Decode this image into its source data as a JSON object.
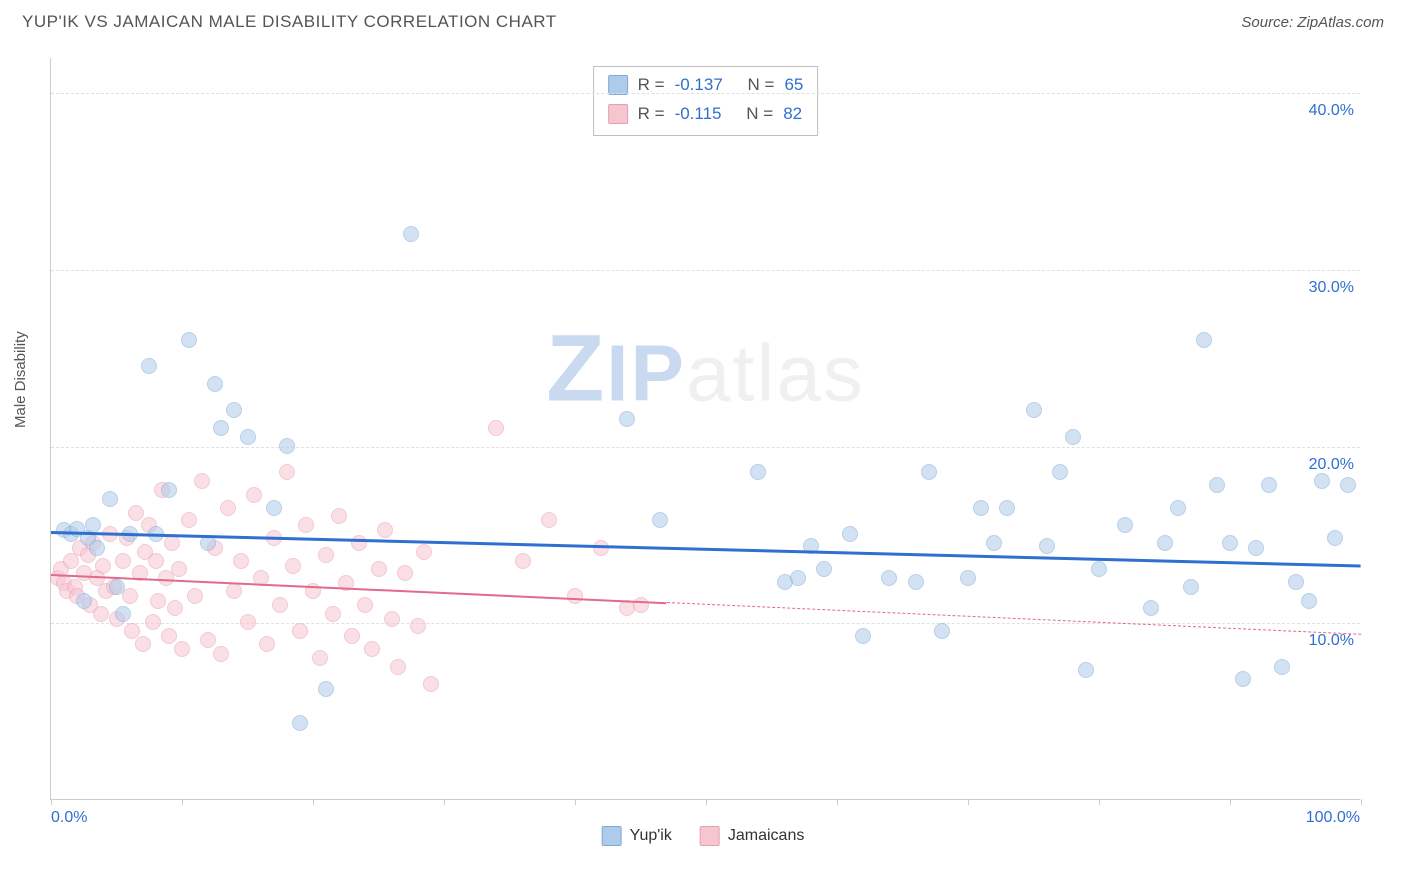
{
  "header": {
    "title": "YUP'IK VS JAMAICAN MALE DISABILITY CORRELATION CHART",
    "source_prefix": "Source: ",
    "source_name": "ZipAtlas.com"
  },
  "chart": {
    "type": "scatter",
    "y_axis_title": "Male Disability",
    "background_color": "#ffffff",
    "grid_color": "#e0e0e0",
    "axis_color": "#cccccc",
    "xlim": [
      0,
      100
    ],
    "ylim": [
      0,
      42
    ],
    "y_ticks": [
      10,
      20,
      30,
      40
    ],
    "y_tick_labels": [
      "10.0%",
      "20.0%",
      "30.0%",
      "40.0%"
    ],
    "x_ticks": [
      0,
      10,
      20,
      30,
      40,
      50,
      60,
      70,
      80,
      90,
      100
    ],
    "x_tick_labels": {
      "0": "0.0%",
      "100": "100.0%"
    },
    "x_tick_label_color": "#2f6fd0",
    "y_tick_label_color": "#2f6fd0",
    "label_fontsize": 16,
    "marker_size": 16,
    "marker_opacity": 0.55,
    "watermark": "ZIPatlas",
    "series": {
      "yupik": {
        "label": "Yup'ik",
        "fill_color": "#aecbeb",
        "stroke_color": "#7fa9d8",
        "trend_color": "#2f6fd0",
        "trend_width": 2.5,
        "trend": {
          "x1": 0,
          "y1": 15.2,
          "x2": 100,
          "y2": 13.3
        },
        "R": "-0.137",
        "N": "65",
        "points": [
          [
            1,
            15.2
          ],
          [
            1.5,
            15
          ],
          [
            2,
            15.3
          ],
          [
            2.5,
            11.2
          ],
          [
            2.8,
            14.8
          ],
          [
            3.2,
            15.5
          ],
          [
            3.5,
            14.2
          ],
          [
            4.5,
            17
          ],
          [
            5,
            12
          ],
          [
            5.5,
            10.5
          ],
          [
            6,
            15
          ],
          [
            7.5,
            24.5
          ],
          [
            8,
            15
          ],
          [
            9,
            17.5
          ],
          [
            10.5,
            26
          ],
          [
            12,
            14.5
          ],
          [
            12.5,
            23.5
          ],
          [
            13,
            21
          ],
          [
            14,
            22
          ],
          [
            15,
            20.5
          ],
          [
            17,
            16.5
          ],
          [
            18,
            20
          ],
          [
            19,
            4.3
          ],
          [
            21,
            6.2
          ],
          [
            27.5,
            32
          ],
          [
            44,
            21.5
          ],
          [
            46.5,
            15.8
          ],
          [
            54,
            18.5
          ],
          [
            56,
            12.3
          ],
          [
            57,
            12.5
          ],
          [
            58,
            14.3
          ],
          [
            59,
            13
          ],
          [
            61,
            15
          ],
          [
            62,
            9.2
          ],
          [
            64,
            12.5
          ],
          [
            66,
            12.3
          ],
          [
            67,
            18.5
          ],
          [
            68,
            9.5
          ],
          [
            70,
            12.5
          ],
          [
            71,
            16.5
          ],
          [
            72,
            14.5
          ],
          [
            73,
            16.5
          ],
          [
            75,
            22
          ],
          [
            76,
            14.3
          ],
          [
            77,
            18.5
          ],
          [
            78,
            20.5
          ],
          [
            79,
            7.3
          ],
          [
            80,
            13
          ],
          [
            82,
            15.5
          ],
          [
            84,
            10.8
          ],
          [
            85,
            14.5
          ],
          [
            86,
            16.5
          ],
          [
            87,
            12
          ],
          [
            88,
            26
          ],
          [
            89,
            17.8
          ],
          [
            90,
            14.5
          ],
          [
            91,
            6.8
          ],
          [
            92,
            14.2
          ],
          [
            93,
            17.8
          ],
          [
            94,
            7.5
          ],
          [
            95,
            12.3
          ],
          [
            96,
            11.2
          ],
          [
            97,
            18
          ],
          [
            98,
            14.8
          ],
          [
            99,
            17.8
          ]
        ]
      },
      "jamaicans": {
        "label": "Jamaicans",
        "fill_color": "#f6c6d0",
        "stroke_color": "#e89eb0",
        "trend_color": "#e26a8a",
        "trend_width": 2,
        "trend_solid": {
          "x1": 0,
          "y1": 12.8,
          "x2": 47,
          "y2": 11.2
        },
        "trend_dash": {
          "x1": 47,
          "y1": 11.2,
          "x2": 100,
          "y2": 9.4
        },
        "R": "-0.115",
        "N": "82",
        "points": [
          [
            0.5,
            12.5
          ],
          [
            0.8,
            13
          ],
          [
            1,
            12.2
          ],
          [
            1.2,
            11.8
          ],
          [
            1.5,
            13.5
          ],
          [
            1.8,
            12
          ],
          [
            2,
            11.5
          ],
          [
            2.2,
            14.2
          ],
          [
            2.5,
            12.8
          ],
          [
            2.8,
            13.8
          ],
          [
            3,
            11
          ],
          [
            3.2,
            14.5
          ],
          [
            3.5,
            12.5
          ],
          [
            3.8,
            10.5
          ],
          [
            4,
            13.2
          ],
          [
            4.2,
            11.8
          ],
          [
            4.5,
            15
          ],
          [
            4.8,
            12
          ],
          [
            5,
            10.2
          ],
          [
            5.5,
            13.5
          ],
          [
            5.8,
            14.8
          ],
          [
            6,
            11.5
          ],
          [
            6.2,
            9.5
          ],
          [
            6.5,
            16.2
          ],
          [
            6.8,
            12.8
          ],
          [
            7,
            8.8
          ],
          [
            7.2,
            14
          ],
          [
            7.5,
            15.5
          ],
          [
            7.8,
            10
          ],
          [
            8,
            13.5
          ],
          [
            8.2,
            11.2
          ],
          [
            8.5,
            17.5
          ],
          [
            8.8,
            12.5
          ],
          [
            9,
            9.2
          ],
          [
            9.2,
            14.5
          ],
          [
            9.5,
            10.8
          ],
          [
            9.8,
            13
          ],
          [
            10,
            8.5
          ],
          [
            10.5,
            15.8
          ],
          [
            11,
            11.5
          ],
          [
            11.5,
            18
          ],
          [
            12,
            9
          ],
          [
            12.5,
            14.2
          ],
          [
            13,
            8.2
          ],
          [
            13.5,
            16.5
          ],
          [
            14,
            11.8
          ],
          [
            14.5,
            13.5
          ],
          [
            15,
            10
          ],
          [
            15.5,
            17.2
          ],
          [
            16,
            12.5
          ],
          [
            16.5,
            8.8
          ],
          [
            17,
            14.8
          ],
          [
            17.5,
            11
          ],
          [
            18,
            18.5
          ],
          [
            18.5,
            13.2
          ],
          [
            19,
            9.5
          ],
          [
            19.5,
            15.5
          ],
          [
            20,
            11.8
          ],
          [
            20.5,
            8
          ],
          [
            21,
            13.8
          ],
          [
            21.5,
            10.5
          ],
          [
            22,
            16
          ],
          [
            22.5,
            12.2
          ],
          [
            23,
            9.2
          ],
          [
            23.5,
            14.5
          ],
          [
            24,
            11
          ],
          [
            24.5,
            8.5
          ],
          [
            25,
            13
          ],
          [
            25.5,
            15.2
          ],
          [
            26,
            10.2
          ],
          [
            26.5,
            7.5
          ],
          [
            27,
            12.8
          ],
          [
            28,
            9.8
          ],
          [
            28.5,
            14
          ],
          [
            29,
            6.5
          ],
          [
            34,
            21
          ],
          [
            36,
            13.5
          ],
          [
            38,
            15.8
          ],
          [
            40,
            11.5
          ],
          [
            42,
            14.2
          ],
          [
            44,
            10.8
          ],
          [
            45,
            11
          ]
        ]
      }
    },
    "stats_box": {
      "R_label": "R =",
      "N_label": "N ="
    },
    "legend_bottom": true
  }
}
